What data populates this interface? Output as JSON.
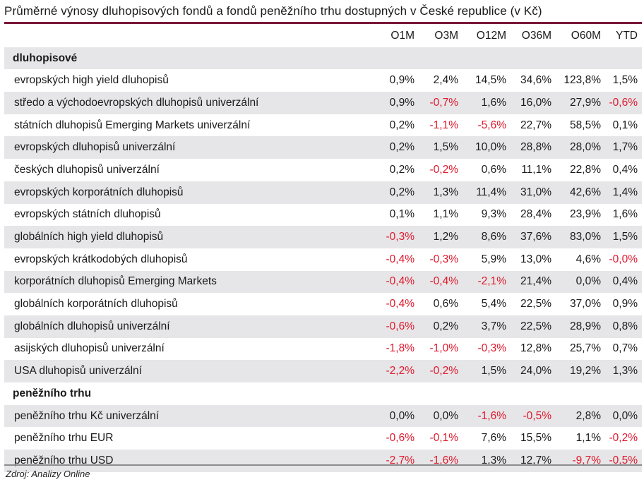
{
  "title": "Průměrné výnosy dluhopisových fondů a fondů peněžního trhu dostupných v České republice (v Kč)",
  "columns": [
    "O1M",
    "O3M",
    "O12M",
    "O36M",
    "O60M",
    "YTD"
  ],
  "colors": {
    "title_rule": "#7a1838",
    "negative": "#e0182c",
    "shade": "#e6e6e8"
  },
  "sections": [
    {
      "name": "dluhopisové",
      "rows": [
        {
          "name": "evropských high yield dluhopisů",
          "values": [
            "0,9%",
            "2,4%",
            "14,5%",
            "34,6%",
            "123,8%",
            "1,5%"
          ]
        },
        {
          "name": "středo a východoevropských dluhopisů univerzální",
          "values": [
            "0,9%",
            "-0,7%",
            "1,6%",
            "16,0%",
            "27,9%",
            "-0,6%"
          ]
        },
        {
          "name": "státních dluhopisů Emerging Markets univerzální",
          "values": [
            "0,2%",
            "-1,1%",
            "-5,6%",
            "22,7%",
            "58,5%",
            "0,1%"
          ]
        },
        {
          "name": "evropských dluhopisů univerzální",
          "values": [
            "0,2%",
            "1,5%",
            "10,0%",
            "28,8%",
            "28,0%",
            "1,7%"
          ]
        },
        {
          "name": "českých dluhopisů univerzální",
          "values": [
            "0,2%",
            "-0,2%",
            "0,6%",
            "11,1%",
            "22,8%",
            "0,4%"
          ]
        },
        {
          "name": "evropských korporátních dluhopisů",
          "values": [
            "0,2%",
            "1,3%",
            "11,4%",
            "31,0%",
            "42,6%",
            "1,4%"
          ]
        },
        {
          "name": "evropských státních dluhopisů",
          "values": [
            "0,1%",
            "1,1%",
            "9,3%",
            "28,4%",
            "23,9%",
            "1,6%"
          ]
        },
        {
          "name": "globálních high yield dluhopisů",
          "values": [
            "-0,3%",
            "1,2%",
            "8,6%",
            "37,6%",
            "83,0%",
            "1,5%"
          ]
        },
        {
          "name": "evropských krátkodobých dluhopisů",
          "values": [
            "-0,4%",
            "-0,3%",
            "5,9%",
            "13,0%",
            "4,6%",
            "-0,0%"
          ]
        },
        {
          "name": "korporátních dluhopisů Emerging Markets",
          "values": [
            "-0,4%",
            "-0,4%",
            "-2,1%",
            "21,4%",
            "0,0%",
            "0,4%"
          ]
        },
        {
          "name": "globálních korporátních dluhopisů",
          "values": [
            "-0,4%",
            "0,6%",
            "5,4%",
            "22,5%",
            "37,0%",
            "0,9%"
          ]
        },
        {
          "name": "globálních dluhopisů univerzální",
          "values": [
            "-0,6%",
            "0,2%",
            "3,7%",
            "22,5%",
            "28,9%",
            "0,8%"
          ]
        },
        {
          "name": "asijských dluhopisů univerzální",
          "values": [
            "-1,8%",
            "-1,0%",
            "-0,3%",
            "12,8%",
            "25,7%",
            "0,7%"
          ]
        },
        {
          "name": "USA dluhopisů univerzální",
          "values": [
            "-2,2%",
            "-0,2%",
            "1,5%",
            "24,0%",
            "19,2%",
            "1,3%"
          ]
        }
      ]
    },
    {
      "name": "peněžního trhu",
      "rows": [
        {
          "name": "peněžního trhu Kč univerzální",
          "values": [
            "0,0%",
            "0,0%",
            "-1,6%",
            "-0,5%",
            "2,8%",
            "0,0%"
          ]
        },
        {
          "name": "peněžního trhu EUR",
          "values": [
            "-0,6%",
            "-0,1%",
            "7,6%",
            "15,5%",
            "1,1%",
            "-0,2%"
          ]
        },
        {
          "name": "peněžního trhu USD",
          "values": [
            "-2,7%",
            "-1,6%",
            "1,3%",
            "12,7%",
            "-9,7%",
            "-0,5%"
          ]
        }
      ]
    }
  ],
  "source": "Zdroj: Analizy Online"
}
